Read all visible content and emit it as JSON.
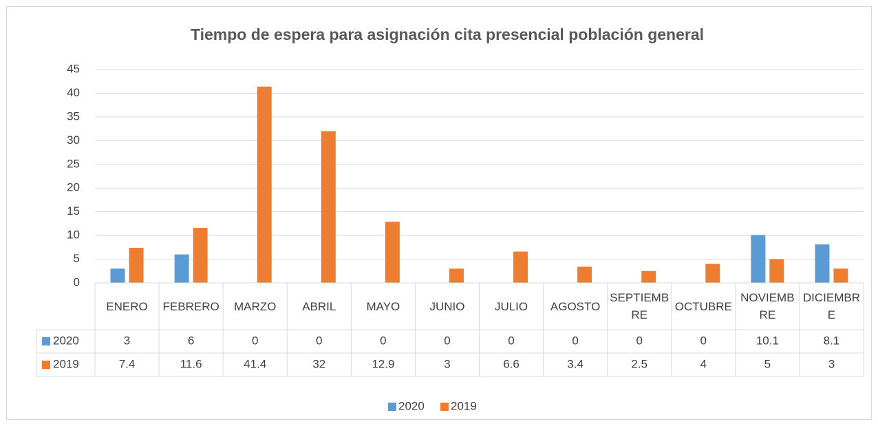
{
  "chart_data": {
    "type": "bar",
    "title": "Tiempo de espera para asignación cita presencial población general",
    "categories": [
      "ENERO",
      "FEBRERO",
      "MARZO",
      "ABRIL",
      "MAYO",
      "JUNIO",
      "JULIO",
      "AGOSTO",
      "SEPTIEMBRE",
      "OCTUBRE",
      "NOVIEMBRE",
      "DICIEMBRE"
    ],
    "series": [
      {
        "name": "2020",
        "color": "#5b9bd5",
        "values": [
          3,
          6,
          0,
          0,
          0,
          0,
          0,
          0,
          0,
          0,
          10.1,
          8.1
        ]
      },
      {
        "name": "2019",
        "color": "#ed7d31",
        "values": [
          7.4,
          11.6,
          41.4,
          32,
          12.9,
          3,
          6.6,
          3.4,
          2.5,
          4,
          5,
          3
        ]
      }
    ],
    "ylim": [
      0,
      45
    ],
    "yticks": [
      0,
      5,
      10,
      15,
      20,
      25,
      30,
      35,
      40,
      45
    ],
    "grid": true,
    "legend": "bottom",
    "data_table": true
  }
}
